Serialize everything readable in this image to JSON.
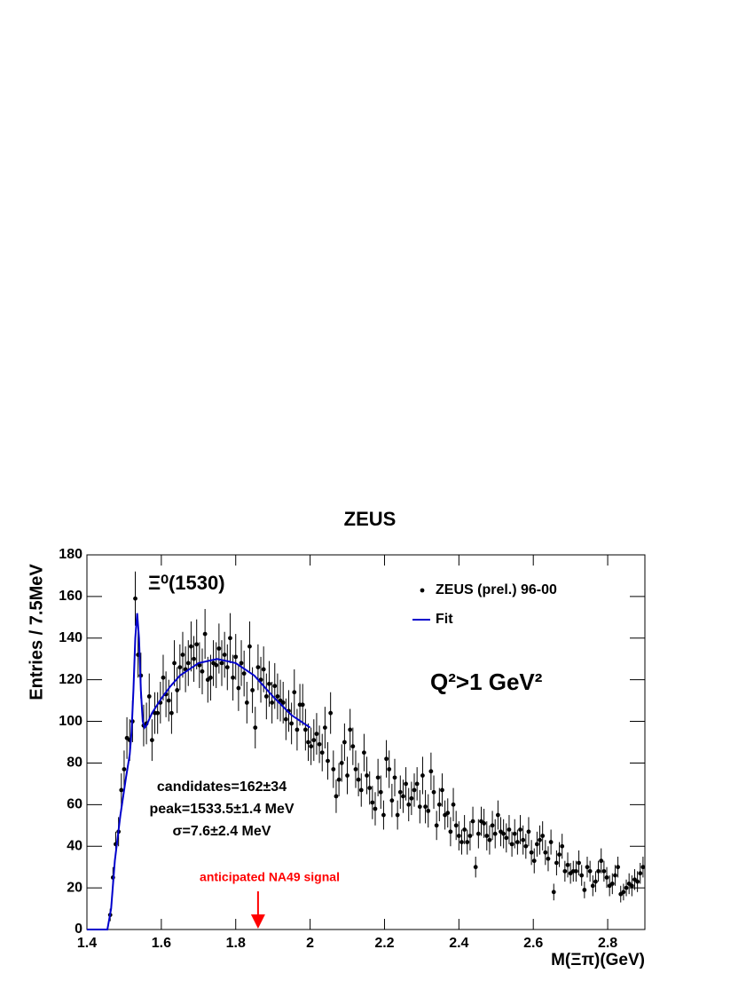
{
  "chart_data": {
    "type": "scatter",
    "title": "ZEUS",
    "x_label": "M(Ξπ)(GeV)",
    "y_label": "Entries / 7.5MeV",
    "xlim": [
      1.4,
      2.9
    ],
    "ylim": [
      0,
      180
    ],
    "xticks": [
      1.4,
      1.6,
      1.8,
      2,
      2.2,
      2.4,
      2.6,
      2.8
    ],
    "yticks": [
      0,
      20,
      40,
      60,
      80,
      100,
      120,
      140,
      160,
      180
    ],
    "legend": "upper right",
    "series": [
      {
        "name": "ZEUS (prel.) 96-00",
        "color": "#000000",
        "mode": "points",
        "x": [
          1.4625,
          1.47,
          1.4775,
          1.485,
          1.4925,
          1.5,
          1.5075,
          1.515,
          1.5225,
          1.53,
          1.5375,
          1.545,
          1.5525,
          1.56,
          1.5675,
          1.575,
          1.5825,
          1.59,
          1.5975,
          1.605,
          1.6125,
          1.62,
          1.6275,
          1.635,
          1.6425,
          1.65,
          1.6575,
          1.665,
          1.6725,
          1.68,
          1.6875,
          1.695,
          1.7025,
          1.71,
          1.7175,
          1.725,
          1.7325,
          1.74,
          1.7475,
          1.755,
          1.7625,
          1.77,
          1.7775,
          1.785,
          1.7925,
          1.8,
          1.8075,
          1.815,
          1.8225,
          1.83,
          1.8375,
          1.845,
          1.8525,
          1.86,
          1.8675,
          1.875,
          1.8825,
          1.89,
          1.8975,
          1.905,
          1.9125,
          1.92,
          1.9275,
          1.935,
          1.9425,
          1.95,
          1.9575,
          1.965,
          1.9725,
          1.98,
          1.9875,
          1.995,
          2.0025,
          2.01,
          2.0175,
          2.025,
          2.0325,
          2.04,
          2.0475,
          2.055,
          2.0625,
          2.07,
          2.0775,
          2.085,
          2.0925,
          2.1,
          2.1075,
          2.115,
          2.1225,
          2.13,
          2.1375,
          2.145,
          2.1525,
          2.16,
          2.1675,
          2.175,
          2.1825,
          2.19,
          2.1975,
          2.205,
          2.2125,
          2.22,
          2.2275,
          2.235,
          2.2425,
          2.25,
          2.2575,
          2.265,
          2.2725,
          2.28,
          2.2875,
          2.295,
          2.3025,
          2.31,
          2.3175,
          2.325,
          2.3325,
          2.34,
          2.3475,
          2.355,
          2.3625,
          2.37,
          2.3775,
          2.385,
          2.3925,
          2.4,
          2.4075,
          2.415,
          2.4225,
          2.43,
          2.4375,
          2.445,
          2.4525,
          2.46,
          2.4675,
          2.475,
          2.4825,
          2.49,
          2.4975,
          2.505,
          2.5125,
          2.52,
          2.5275,
          2.535,
          2.5425,
          2.55,
          2.5575,
          2.565,
          2.5725,
          2.58,
          2.5875,
          2.595,
          2.6025,
          2.61,
          2.6175,
          2.625,
          2.6325,
          2.64,
          2.6475,
          2.655,
          2.6625,
          2.67,
          2.6775,
          2.685,
          2.6925,
          2.7,
          2.7075,
          2.715,
          2.7225,
          2.73,
          2.7375,
          2.745,
          2.7525,
          2.76,
          2.7675,
          2.775,
          2.7825,
          2.79,
          2.7975,
          2.805,
          2.8125,
          2.82,
          2.8275,
          2.835,
          2.8425,
          2.85,
          2.8575,
          2.865,
          2.8725,
          2.88,
          2.8875,
          2.895
        ],
        "values": [
          7,
          25,
          41,
          47,
          67,
          77,
          92,
          91,
          100,
          159,
          132,
          122,
          98,
          99,
          112,
          91,
          104,
          104,
          109,
          121,
          113,
          110,
          104,
          128,
          115,
          126,
          132,
          125,
          128,
          136,
          130,
          137,
          127,
          124,
          142,
          120,
          121,
          128,
          127,
          135,
          128,
          132,
          126,
          140,
          121,
          131,
          116,
          128,
          123,
          109,
          136,
          115,
          97,
          126,
          120,
          125,
          112,
          118,
          109,
          117,
          112,
          110,
          109,
          101,
          105,
          99,
          114,
          96,
          108,
          108,
          96,
          90,
          88,
          91,
          94,
          89,
          85,
          97,
          81,
          104,
          77,
          64,
          72,
          80,
          90,
          74,
          96,
          88,
          77,
          72,
          67,
          85,
          74,
          68,
          61,
          58,
          73,
          66,
          55,
          82,
          77,
          62,
          73,
          55,
          66,
          64,
          70,
          60,
          63,
          67,
          70,
          59,
          74,
          59,
          57,
          76,
          66,
          50,
          60,
          67,
          55,
          56,
          47,
          60,
          50,
          45,
          42,
          48,
          42,
          45,
          52,
          30,
          46,
          52,
          51,
          45,
          43,
          50,
          46,
          55,
          47,
          46,
          44,
          48,
          41,
          46,
          42,
          48,
          43,
          40,
          47,
          37,
          33,
          41,
          43,
          45,
          37,
          34,
          42,
          18,
          32,
          36,
          40,
          28,
          31,
          27,
          28,
          28,
          32,
          26,
          19,
          30,
          28,
          21,
          23,
          28,
          33,
          28,
          25,
          21,
          22,
          26,
          30,
          17,
          18,
          20,
          22,
          21,
          24,
          23,
          27,
          30
        ],
        "errors": [
          3,
          5,
          6,
          7,
          8,
          9,
          10,
          10,
          10,
          13,
          11,
          11,
          10,
          10,
          11,
          10,
          10,
          10,
          10,
          11,
          11,
          10,
          10,
          11,
          11,
          11,
          11,
          11,
          11,
          12,
          11,
          12,
          11,
          11,
          12,
          11,
          11,
          11,
          11,
          12,
          11,
          11,
          11,
          12,
          11,
          11,
          11,
          11,
          11,
          10,
          12,
          11,
          10,
          11,
          11,
          11,
          11,
          11,
          10,
          11,
          11,
          10,
          10,
          10,
          10,
          10,
          11,
          10,
          10,
          10,
          10,
          9,
          9,
          10,
          10,
          9,
          9,
          10,
          9,
          10,
          9,
          8,
          8,
          9,
          9,
          9,
          10,
          9,
          9,
          8,
          8,
          9,
          9,
          8,
          8,
          8,
          9,
          8,
          7,
          9,
          9,
          8,
          9,
          7,
          8,
          8,
          8,
          8,
          8,
          8,
          8,
          8,
          9,
          8,
          8,
          9,
          8,
          7,
          8,
          8,
          7,
          7,
          7,
          8,
          7,
          7,
          6,
          7,
          6,
          7,
          7,
          5,
          7,
          7,
          7,
          7,
          7,
          7,
          7,
          7,
          7,
          7,
          7,
          7,
          6,
          7,
          6,
          7,
          7,
          6,
          7,
          6,
          6,
          6,
          7,
          7,
          6,
          6,
          6,
          4,
          6,
          6,
          6,
          5,
          6,
          5,
          5,
          5,
          6,
          5,
          4,
          5,
          5,
          5,
          5,
          5,
          6,
          5,
          5,
          5,
          5,
          5,
          5,
          4,
          4,
          4,
          5,
          5,
          5,
          5,
          5,
          5
        ]
      },
      {
        "name": "Fit",
        "color": "#0000cc",
        "mode": "line",
        "x": [
          1.4,
          1.455,
          1.465,
          1.475,
          1.49,
          1.505,
          1.515,
          1.52,
          1.525,
          1.53,
          1.535,
          1.54,
          1.545,
          1.55,
          1.555,
          1.56,
          1.575,
          1.6,
          1.625,
          1.65,
          1.7,
          1.75,
          1.8,
          1.85,
          1.9,
          1.95,
          2.0
        ],
        "values": [
          0,
          0,
          10,
          33,
          55,
          73,
          84,
          95,
          115,
          140,
          152,
          140,
          115,
          100,
          97,
          98,
          104,
          111,
          117,
          122,
          128,
          130,
          128,
          122,
          112,
          103,
          97
        ]
      }
    ],
    "annotations": [
      {
        "text": "Ξ⁰(1530)"
      },
      {
        "text": "Q²>1 GeV²"
      },
      {
        "text": "candidates=162±34"
      },
      {
        "text": "peak=1533.5±1.4 MeV"
      },
      {
        "text": "σ=7.6±2.4 MeV"
      },
      {
        "text": "anticipated NA49 signal",
        "x": 1.86,
        "color": "#ff0000"
      }
    ]
  }
}
